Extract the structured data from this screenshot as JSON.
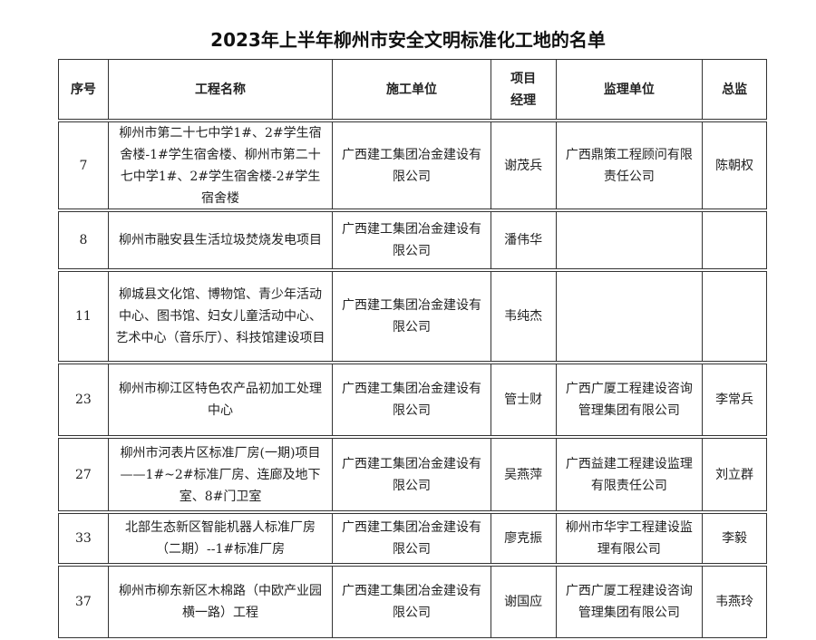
{
  "title": "2023年上半年柳州市安全文明标准化工地的名单",
  "headers": [
    "序号",
    "工程名称",
    "施工单位",
    "项目经理",
    "监理单位",
    "总监"
  ],
  "rows": [
    {
      "no": "7",
      "name": "柳州市第二十七中学1#、2#学生宿舍楼-1#学生宿舍楼、柳州市第二十七中学1#、2#学生宿舍楼-2#学生宿舍楼",
      "contractor": "广西建工集团冶金建设有限公司",
      "manager": "谢茂兵",
      "supervisor": "广西鼎策工程顾问有限责任公司",
      "chief": "陈朝权"
    },
    {
      "no": "8",
      "name": "柳州市融安县生活垃圾焚烧发电项目",
      "contractor": "广西建工集团冶金建设有限公司",
      "manager": "潘伟华",
      "supervisor": "",
      "chief": ""
    },
    {
      "no": "11",
      "name": "柳城县文化馆、博物馆、青少年活动中心、图书馆、妇女儿童活动中心、艺术中心（音乐厅）、科技馆建设项目",
      "contractor": "广西建工集团冶金建设有限公司",
      "manager": "韦纯杰",
      "supervisor": "",
      "chief": ""
    },
    {
      "no": "23",
      "name": "柳州市柳江区特色农产品初加工处理中心",
      "contractor": "广西建工集团冶金建设有限公司",
      "manager": "管士财",
      "supervisor": "广西广厦工程建设咨询管理集团有限公司",
      "chief": "李常兵"
    },
    {
      "no": "27",
      "name": "柳州市河表片区标准厂房(一期)项目——1#~2#标准厂房、连廊及地下室、8#门卫室",
      "contractor": "广西建工集团冶金建设有限公司",
      "manager": "吴燕萍",
      "supervisor": "广西益建工程建设监理有限责任公司",
      "chief": "刘立群"
    },
    {
      "no": "33",
      "name": "北部生态新区智能机器人标准厂房（二期）--1#标准厂房",
      "contractor": "广西建工集团冶金建设有限公司",
      "manager": "廖克振",
      "supervisor": "柳州市华宇工程建设监理有限公司",
      "chief": "李毅"
    },
    {
      "no": "37",
      "name": "柳州市柳东新区木棉路（中欧产业园横一路）工程",
      "contractor": "广西建工集团冶金建设有限公司",
      "manager": "谢国应",
      "supervisor": "广西广厦工程建设咨询管理集团有限公司",
      "chief": "韦燕玲"
    }
  ]
}
